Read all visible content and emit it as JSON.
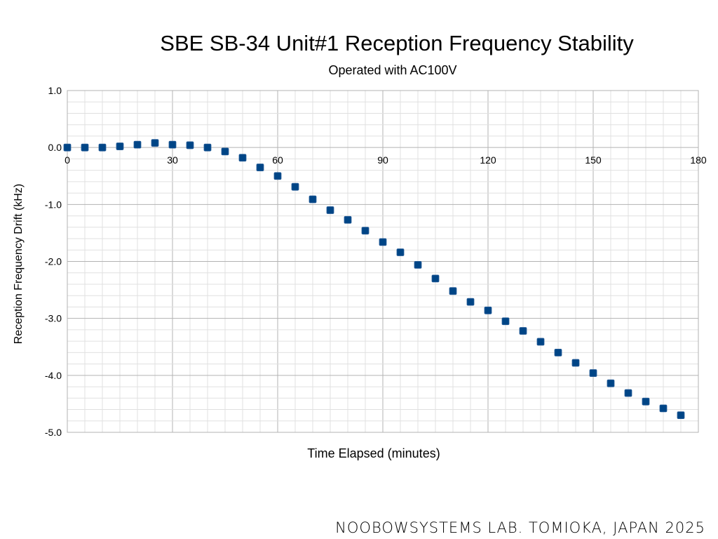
{
  "chart_data": {
    "type": "scatter",
    "title": "SBE SB-34 Unit#1 Reception Frequency Stability",
    "subtitle": "Operated with AC100V",
    "xlabel": "Time Elapsed (minutes)",
    "ylabel": "Reception Frequency Drift (kHz)",
    "xlim": [
      0,
      180
    ],
    "ylim": [
      -5.0,
      1.0
    ],
    "x_ticks": [
      0,
      30,
      60,
      90,
      120,
      150,
      180
    ],
    "y_ticks": [
      1.0,
      0.0,
      -1.0,
      -2.0,
      -3.0,
      -4.0,
      -5.0
    ],
    "grid": true,
    "marker_color": "#004586",
    "series": [
      {
        "x": [
          0,
          5,
          10,
          15,
          20,
          25,
          30,
          35,
          40,
          45,
          50,
          55,
          60,
          65,
          70,
          75,
          80,
          85,
          90,
          95,
          100,
          105,
          110,
          115,
          120,
          125,
          130,
          135,
          140,
          145,
          150,
          155,
          160,
          165,
          170,
          175
        ],
        "y": [
          0.0,
          0.0,
          0.0,
          0.02,
          0.05,
          0.08,
          0.05,
          0.04,
          0.0,
          -0.07,
          -0.18,
          -0.35,
          -0.5,
          -0.69,
          -0.91,
          -1.1,
          -1.27,
          -1.46,
          -1.66,
          -1.84,
          -2.06,
          -2.3,
          -2.52,
          -2.71,
          -2.86,
          -3.05,
          -3.22,
          -3.41,
          -3.6,
          -3.78,
          -3.96,
          -4.14,
          -4.31,
          -4.46,
          -4.58,
          -4.7
        ]
      }
    ]
  },
  "footer": "NOOBOWSYSTEMS LAB. TOMIOKA, JAPAN 2025"
}
